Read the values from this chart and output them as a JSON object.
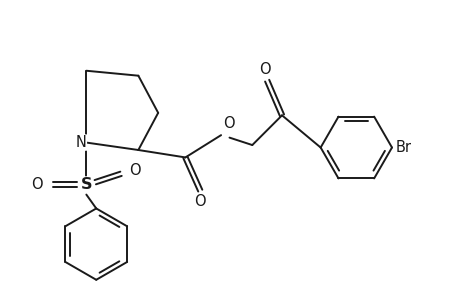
{
  "bg_color": "#ffffff",
  "line_color": "#1a1a1a",
  "line_width": 1.4,
  "font_size": 10.5,
  "label_N": "N",
  "label_S": "S",
  "label_O": "O",
  "label_Br": "Br",
  "xlim": [
    0,
    9.2
  ],
  "ylim": [
    0,
    6.0
  ]
}
